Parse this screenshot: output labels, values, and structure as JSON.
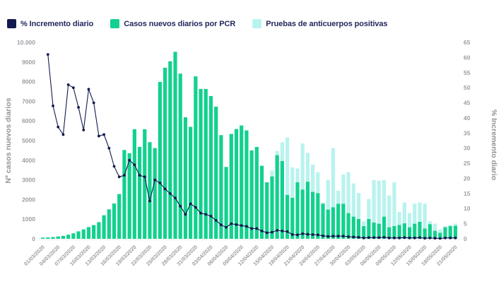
{
  "chart_data": {
    "type": "bar",
    "subtype": "stacked-bars-with-line",
    "x": [
      "01/03/2020",
      "02/03/2020",
      "03/03/2020",
      "04/03/2020",
      "05/03/2020",
      "06/03/2020",
      "07/03/2020",
      "08/03/2020",
      "09/03/2020",
      "10/03/2020",
      "11/03/2020",
      "12/03/2020",
      "13/03/2020",
      "14/03/2020",
      "15/03/2020",
      "16/03/2020",
      "17/03/2020",
      "18/03/2020",
      "19/03/2020",
      "20/03/2020",
      "21/03/2020",
      "22/03/2020",
      "23/03/2020",
      "24/03/2020",
      "25/03/2020",
      "26/03/2020",
      "27/03/2020",
      "28/03/2020",
      "29/03/2020",
      "30/03/2020",
      "31/03/2020",
      "01/04/2020",
      "02/04/2020",
      "03/04/2020",
      "04/04/2020",
      "05/04/2020",
      "06/04/2020",
      "07/04/2020",
      "08/04/2020",
      "09/04/2020",
      "10/04/2020",
      "11/04/2020",
      "12/04/2020",
      "13/04/2020",
      "14/04/2020",
      "15/04/2020",
      "16/04/2020",
      "17/04/2020",
      "18/04/2020",
      "19/04/2020",
      "20/04/2020",
      "21/04/2020",
      "22/04/2020",
      "23/04/2020",
      "24/04/2020",
      "25/04/2020",
      "26/04/2020",
      "27/04/2020",
      "28/04/2020",
      "29/04/2020",
      "30/04/2020",
      "01/05/2020",
      "02/05/2020",
      "03/05/2020",
      "04/05/2020",
      "05/05/2020",
      "06/05/2020",
      "07/05/2020",
      "08/05/2020",
      "09/05/2020",
      "10/05/2020",
      "11/05/2020",
      "12/05/2020",
      "13/05/2020",
      "14/05/2020",
      "15/05/2020",
      "16/05/2020",
      "17/05/2020",
      "18/05/2020",
      "19/05/2020",
      "20/05/2020",
      "21/05/2020"
    ],
    "x_tick_every": 3,
    "series": [
      {
        "name": "Casos nuevos diarios por PCR",
        "type": "bar",
        "axis": "left",
        "color": "#12d18e",
        "values": [
          60,
          70,
          90,
          120,
          150,
          210,
          280,
          380,
          480,
          600,
          700,
          850,
          1200,
          1500,
          1800,
          2280,
          4520,
          4360,
          5580,
          4680,
          5580,
          4920,
          4620,
          7990,
          8710,
          9040,
          9520,
          8410,
          6190,
          5700,
          8270,
          7630,
          7630,
          7270,
          6730,
          5280,
          3660,
          5340,
          5590,
          5770,
          5520,
          4500,
          4680,
          3720,
          2880,
          3180,
          4260,
          3960,
          2240,
          2090,
          2880,
          2510,
          2910,
          2390,
          2330,
          1790,
          1490,
          1610,
          1790,
          1790,
          1310,
          1130,
          1010,
          650,
          1010,
          830,
          770,
          1130,
          590,
          650,
          710,
          790,
          590,
          770,
          870,
          530,
          750,
          410,
          310,
          590,
          650,
          670
        ]
      },
      {
        "name": "Pruebas de anticuerpos positivas",
        "type": "bar",
        "axis": "left",
        "stacked_on": "Casos nuevos diarios por PCR",
        "color": "#b9f3ee",
        "values": [
          0,
          0,
          0,
          0,
          0,
          0,
          0,
          0,
          0,
          0,
          0,
          0,
          0,
          0,
          0,
          0,
          0,
          0,
          0,
          0,
          0,
          0,
          0,
          0,
          0,
          0,
          0,
          0,
          0,
          0,
          0,
          0,
          0,
          0,
          0,
          0,
          0,
          0,
          0,
          0,
          0,
          0,
          0,
          0,
          0,
          300,
          210,
          960,
          2920,
          1550,
          700,
          2350,
          1470,
          1390,
          1060,
          60,
          1510,
          3010,
          660,
          1480,
          2080,
          1690,
          1320,
          240,
          1020,
          2160,
          2190,
          1860,
          1620,
          2230,
          660,
          1060,
          720,
          1020,
          980,
          1260,
          140,
          360,
          160,
          60,
          60,
          100
        ]
      },
      {
        "name": "% Incremento diario",
        "type": "line",
        "axis": "right",
        "color": "#121a4f",
        "values": [
          null,
          61,
          44,
          37,
          34.5,
          51,
          50,
          43.5,
          36,
          49.5,
          45,
          34,
          34.5,
          30,
          24,
          20.5,
          21,
          26,
          24.5,
          21,
          20.5,
          12.5,
          19.5,
          18.5,
          16.5,
          15,
          13.5,
          10.8,
          8.1,
          11.6,
          10.4,
          8.5,
          8.1,
          7.5,
          6.1,
          4.6,
          3.8,
          5.0,
          4.7,
          4.4,
          4.1,
          3.4,
          3.4,
          2.6,
          2.0,
          2.2,
          2.8,
          2.6,
          2.4,
          1.4,
          1.3,
          1.7,
          1.5,
          1.4,
          1.3,
          1.0,
          0.8,
          0.9,
          0.9,
          0.9,
          0.7,
          0.6,
          0.5,
          0.3,
          0.4,
          0.4,
          0.4,
          0.5,
          0.3,
          0.3,
          0.3,
          0.4,
          0.3,
          0.3,
          0.4,
          0.2,
          0.3,
          0.2,
          0.1,
          0.3,
          0.3,
          0.3
        ]
      }
    ],
    "left_axis": {
      "title": "Nº casos nuevos diarios",
      "min": 0,
      "max": 10000,
      "tick_labels": [
        "0",
        "1000",
        "2000",
        "3000",
        "4000",
        "5000",
        "6000",
        "7000",
        "8000",
        "9000",
        "10.000"
      ]
    },
    "right_axis": {
      "title": "% Incremento diario",
      "min": 0,
      "max": 65,
      "tick_labels": [
        "0",
        "5",
        "10",
        "15",
        "20",
        "25",
        "30",
        "35",
        "40",
        "45",
        "50",
        "55",
        "60",
        "65"
      ]
    },
    "legend_position": "top-left",
    "grid": false,
    "background": "#ffffff",
    "tick_color": "#9b9ea3"
  },
  "legend": {
    "items": [
      {
        "label": "% Incremento diario",
        "color": "#121a4f"
      },
      {
        "label": "Casos nuevos diarios por PCR",
        "color": "#12d18e"
      },
      {
        "label": "Pruebas de anticuerpos positivas",
        "color": "#b9f3ee"
      }
    ]
  }
}
